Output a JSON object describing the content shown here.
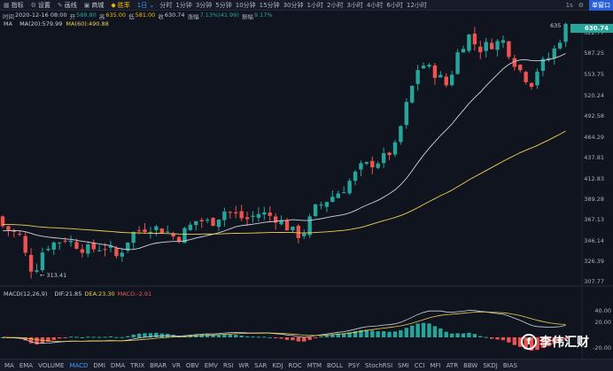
{
  "toolbar": {
    "items": [
      {
        "label": "指标",
        "icon": "indicator-icon"
      },
      {
        "label": "设置",
        "icon": "settings-icon"
      },
      {
        "label": "画线",
        "icon": "draw-icon"
      },
      {
        "label": "商城",
        "icon": "store-icon"
      },
      {
        "label": "胜率",
        "icon": "winrate-icon",
        "active": true
      }
    ],
    "timeframe_select": "1日 ⌄",
    "timeframes": [
      "分时",
      "1分钟",
      "3分钟",
      "5分钟",
      "10分钟",
      "15分钟",
      "30分钟",
      "1小时",
      "2小时",
      "3小时",
      "4小时",
      "6小时",
      "12小时"
    ],
    "right_label": "1s",
    "layout_button": "单窗口"
  },
  "info": {
    "time_label": "时间",
    "time": "2020-12-16 08:00",
    "open_label": "开",
    "open": "588.80",
    "high_label": "高",
    "high": "635.00",
    "low_label": "低",
    "low": "581.00",
    "close_label": "收",
    "close": "630.74",
    "change_label": "涨幅",
    "change": "7.13%(41.99)",
    "amplitude_label": "振幅",
    "amplitude": "9.17%"
  },
  "ma_legend": {
    "title": "MA",
    "ma20": "MA(20):579.99",
    "ma60": "MA(60):490.88"
  },
  "price_axis": [
    "622.77",
    "587.25",
    "553.75",
    "520.24",
    "492.58",
    "464.29",
    "437.81",
    "412.83",
    "389.28",
    "367.13",
    "346.14",
    "326.39",
    "307.77"
  ],
  "current_price": "630.74",
  "high_marker": "635",
  "low_marker": "313.41",
  "macd_legend": {
    "title": "MACD(12,26,9)",
    "dif": "DIF:21.85",
    "dea": "DEA:23.30",
    "macd": "MACD:-2.91"
  },
  "macd_axis": [
    "40.00",
    "20.00",
    "-20.00"
  ],
  "indicators": [
    "MA",
    "EMA",
    "VOLUME",
    "MACD",
    "DMI",
    "DMA",
    "TRIX",
    "BRAR",
    "VR",
    "OBV",
    "EMV",
    "RSI",
    "WR",
    "SAR",
    "KDJ",
    "ROC",
    "MTM",
    "BOLL",
    "PSY",
    "StochRSI",
    "SMI",
    "CCI",
    "MFI",
    "ATR",
    "BBW",
    "SKDJ",
    "BIAS"
  ],
  "active_indicator": "MACD",
  "watermark": "李伟汇财",
  "colors": {
    "up": "#26a69a",
    "down": "#ef5350",
    "ma20": "#cfd3dc",
    "ma60": "#f0d050",
    "accent": "#3c9cff",
    "background": "#10141f"
  }
}
